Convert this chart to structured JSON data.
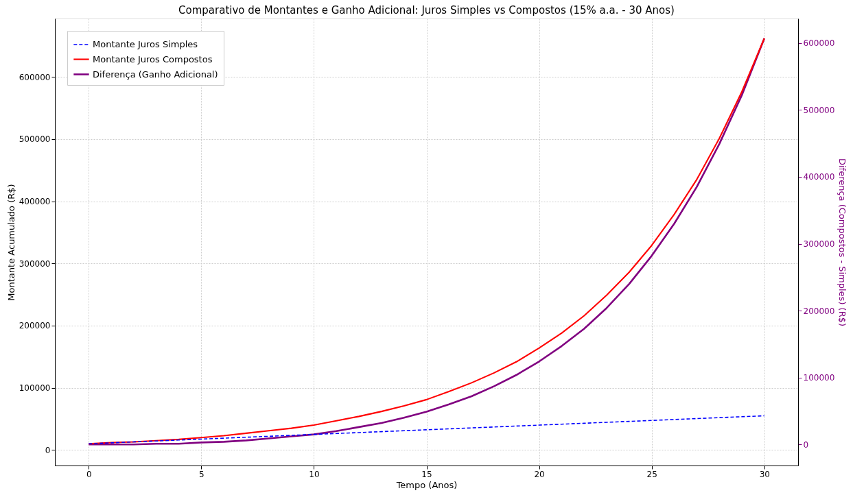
{
  "chart_data": {
    "type": "line",
    "title": "Comparativo de Montantes e Ganho Adicional: Juros Simples vs Compostos (15% a.a. - 30 Anos)",
    "xlabel": "Tempo (Anos)",
    "ylabel": "Montante Acumulado (R$)",
    "y2label": "Diferença (Compostos - Simples) (R$)",
    "x": [
      0,
      1,
      2,
      3,
      4,
      5,
      6,
      7,
      8,
      9,
      10,
      11,
      12,
      13,
      14,
      15,
      16,
      17,
      18,
      19,
      20,
      21,
      22,
      23,
      24,
      25,
      26,
      27,
      28,
      29,
      30
    ],
    "series": [
      {
        "name": "Montante Juros Simples",
        "color": "#0000ff",
        "line_style": "dashed",
        "values": [
          10000,
          11500,
          13000,
          14500,
          16000,
          17500,
          19000,
          20500,
          22000,
          23500,
          25000,
          26500,
          28000,
          29500,
          31000,
          32500,
          34000,
          35500,
          37000,
          38500,
          40000,
          41500,
          43000,
          44500,
          46000,
          47500,
          49000,
          50500,
          52000,
          53500,
          55000
        ]
      },
      {
        "name": "Montante Juros Compostos",
        "color": "#ff0000",
        "line_style": "solid",
        "values": [
          10000,
          12000,
          13000,
          15000,
          17000,
          20000,
          23000,
          27000,
          31000,
          35000,
          40000,
          47000,
          54000,
          62000,
          71000,
          81000,
          94000,
          108000,
          124000,
          142000,
          164000,
          188000,
          216000,
          249000,
          286000,
          329000,
          379000,
          435000,
          501000,
          576000,
          662000
        ]
      },
      {
        "name": "Diferença (Ganho Adicional)",
        "color": "#800080",
        "line_style": "solid",
        "axis": "y2",
        "values": [
          0,
          0,
          0,
          1000,
          1000,
          3000,
          4000,
          6000,
          9000,
          12000,
          15000,
          20000,
          26000,
          32000,
          40000,
          49000,
          60000,
          72000,
          87000,
          104000,
          124000,
          147000,
          173000,
          204000,
          240000,
          282000,
          330000,
          385000,
          449000,
          522000,
          607000
        ]
      }
    ],
    "xlim": [
      -1.5,
      31.5
    ],
    "xticks": [
      0,
      5,
      10,
      15,
      20,
      25,
      30
    ],
    "ylim": [
      -25000,
      694000
    ],
    "yticks": [
      0,
      100000,
      200000,
      300000,
      400000,
      500000,
      600000
    ],
    "y2lim": [
      -31500,
      636700
    ],
    "y2ticks": [
      0,
      100000,
      200000,
      300000,
      400000,
      500000,
      600000
    ],
    "grid": true,
    "legend": "top left"
  }
}
